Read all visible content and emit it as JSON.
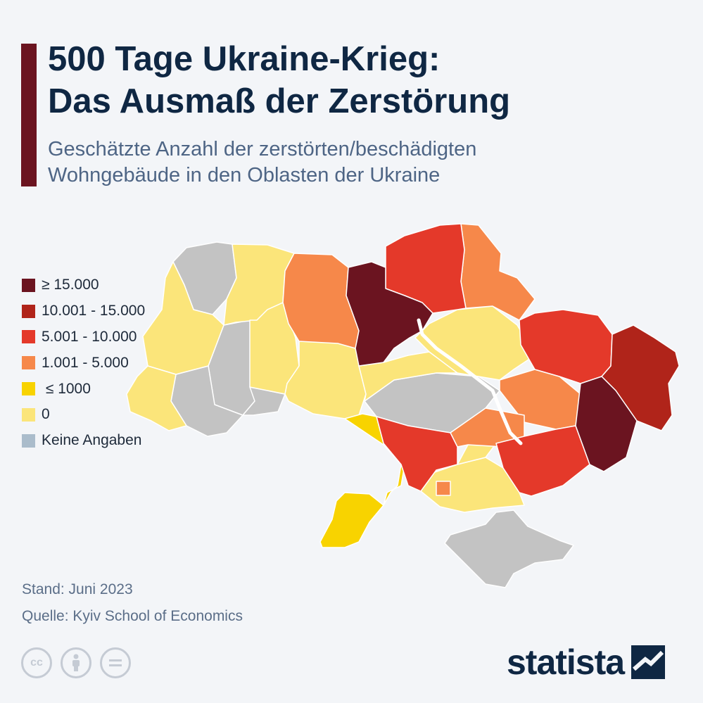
{
  "header": {
    "title_line1": "500 Tage Ukraine-Krieg:",
    "title_line2": "Das Ausmaß der Zerstörung",
    "subtitle_line1": "Geschätzte Anzahl der zerstörten/beschädigten",
    "subtitle_line2": "Wohngebäude in den Oblasten der Ukraine"
  },
  "legend": [
    {
      "label": "≥ 15.000",
      "color": "#6b1420"
    },
    {
      "label": "10.001 - 15.000",
      "color": "#b0241a"
    },
    {
      "label": "5.001 - 10.000",
      "color": "#e4392a"
    },
    {
      "label": "1.001 - 5.000",
      "color": "#f6884a"
    },
    {
      "label": " ≤ 1000",
      "color": "#f8d300"
    },
    {
      "label": "0",
      "color": "#fbe57a"
    },
    {
      "label": "Keine Angaben",
      "color": "#aabccb"
    }
  ],
  "colors": {
    "no_data_map": "#c3c3c3",
    "background": "#f3f5f8"
  },
  "footer": {
    "stand": "Stand: Juni 2023",
    "source": "Quelle: Kyiv School of Economics",
    "brand": "statista"
  },
  "license_icons": [
    "cc-icon",
    "by-person-icon",
    "nd-equal-icon"
  ]
}
